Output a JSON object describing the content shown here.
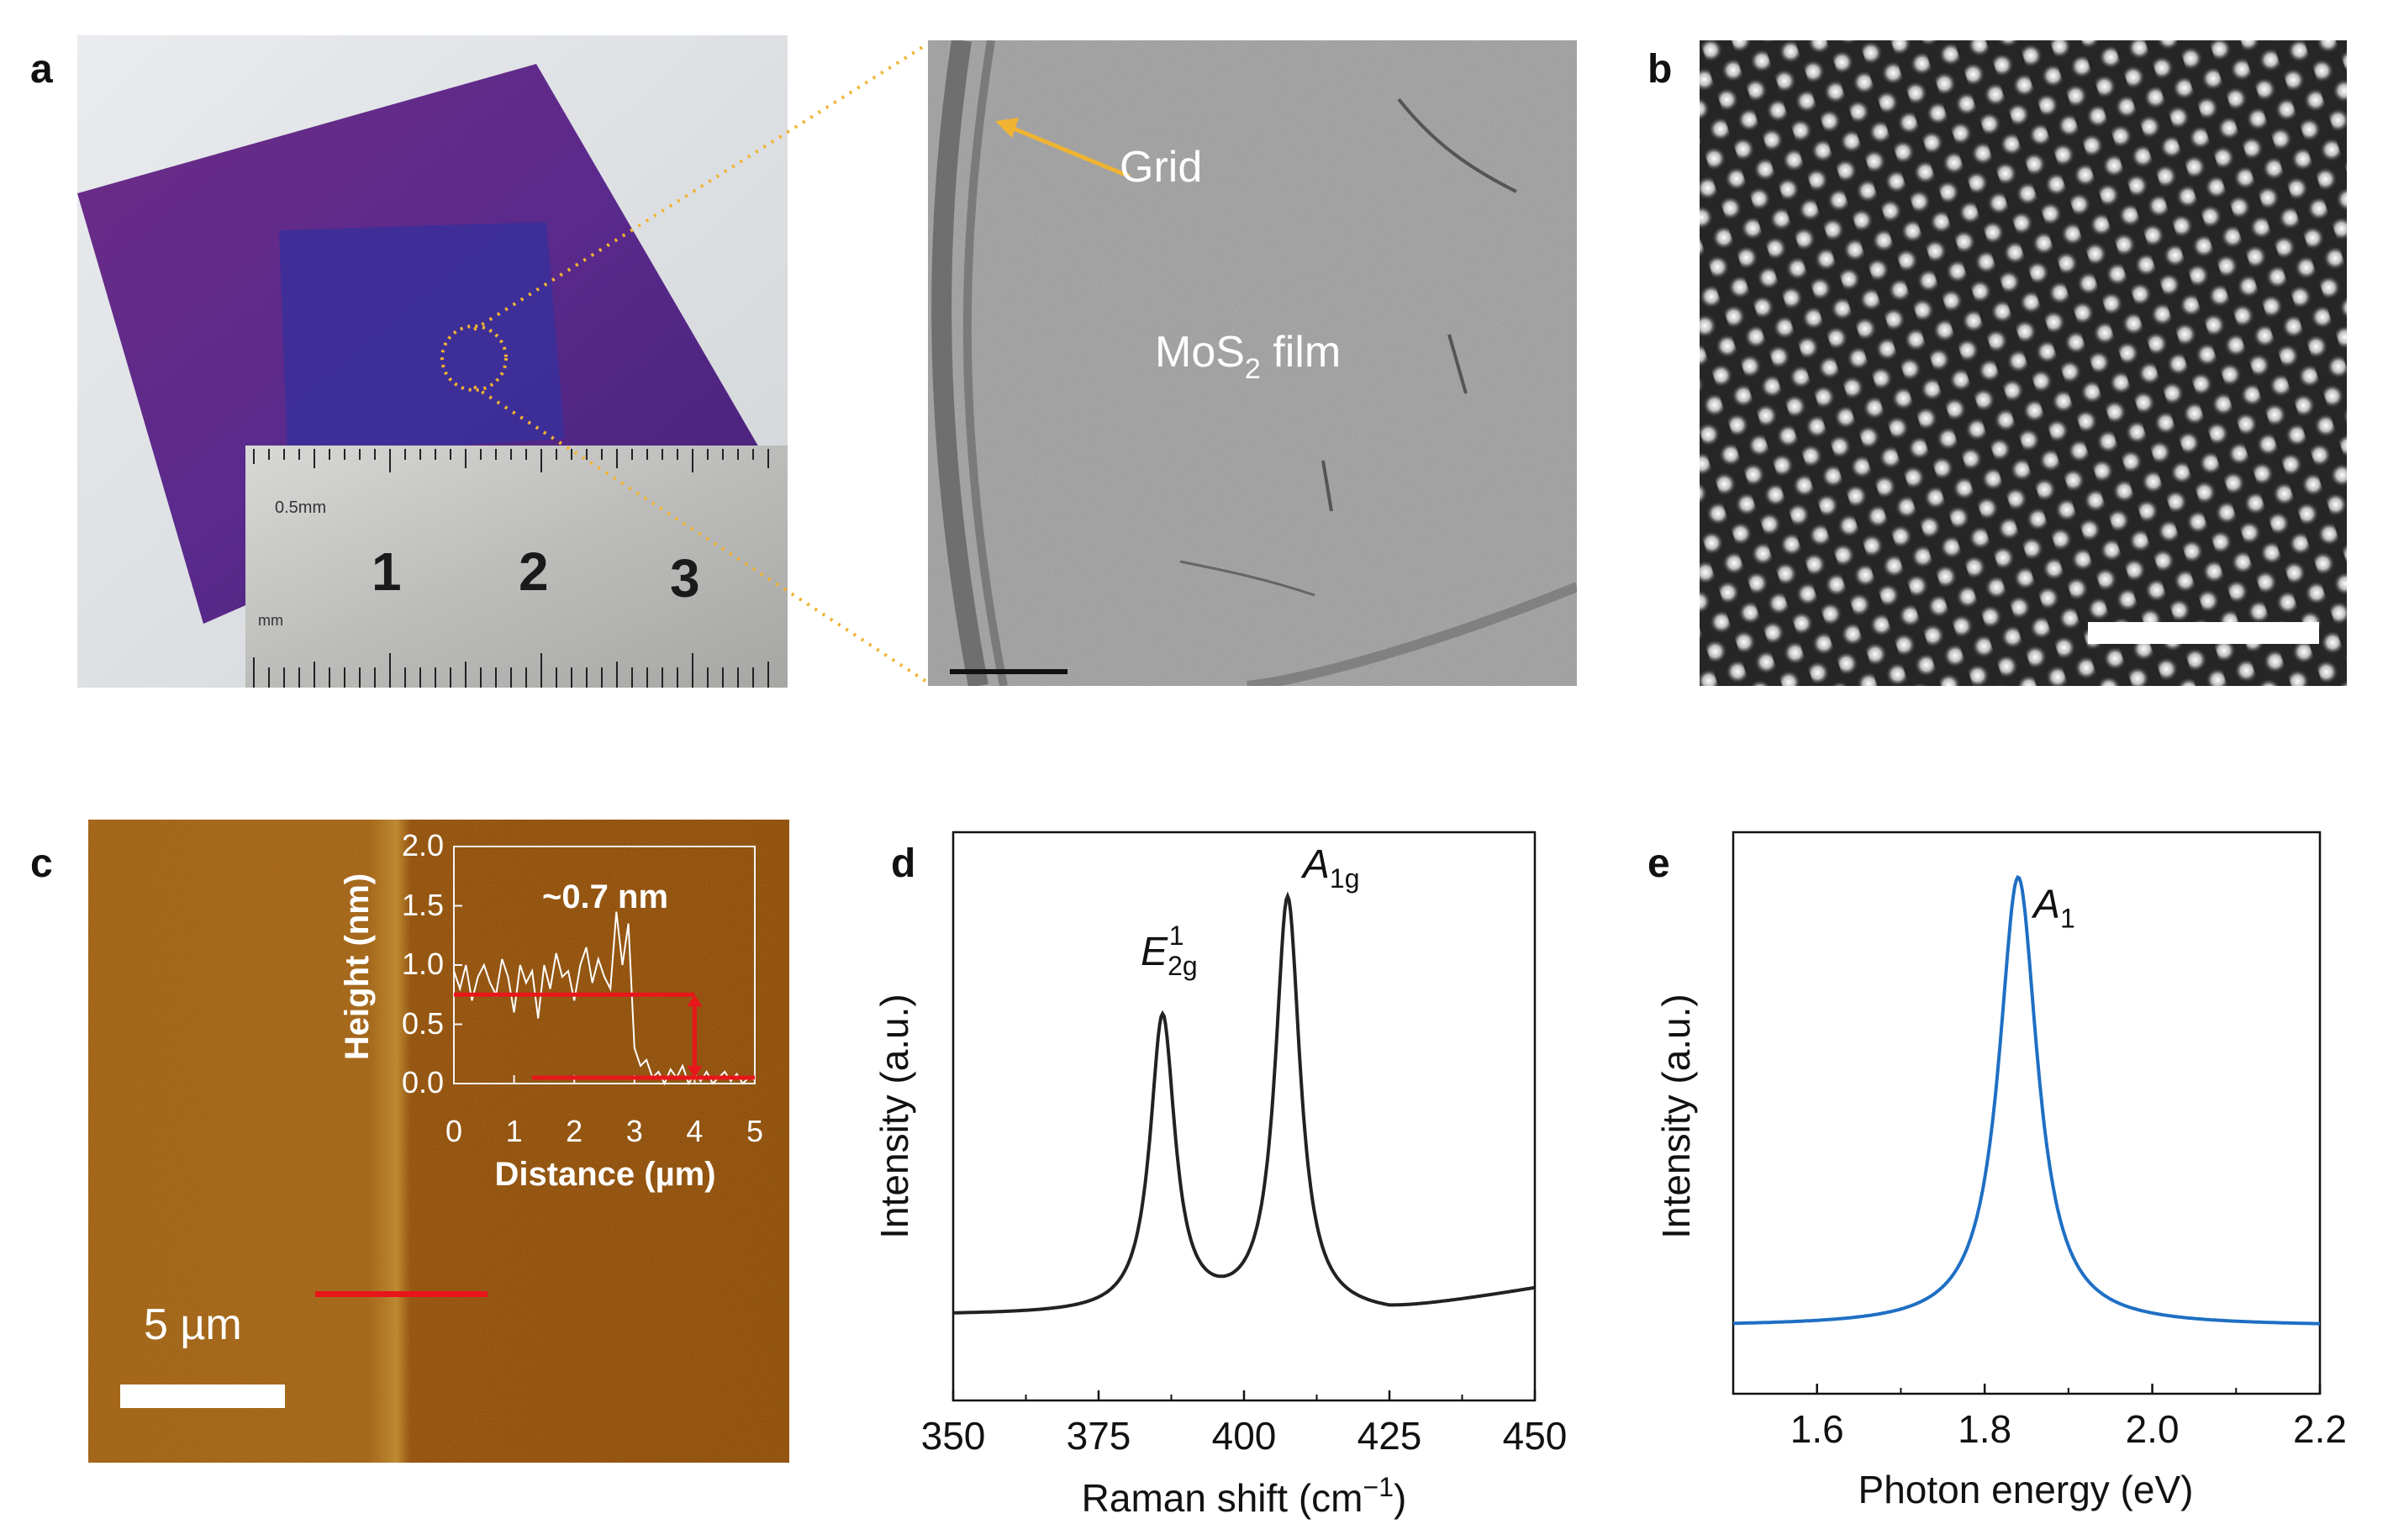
{
  "panels": {
    "a": {
      "letter": "a",
      "ruler": {
        "label_small": "0.5mm",
        "label_mm": "mm",
        "numbers": [
          "1",
          "2",
          "3"
        ]
      },
      "tem": {
        "grid_label": "Grid",
        "film_label_main": "MoS",
        "film_label_sub": "2",
        "film_label_tail": " film"
      }
    },
    "b": {
      "letter": "b"
    },
    "c": {
      "letter": "c",
      "scale_label": "5 µm",
      "inset": {
        "annotation": "~0.7 nm",
        "xlabel": "Distance (µm)",
        "ylabel": "Height (nm)",
        "xticks": [
          "0",
          "1",
          "2",
          "3",
          "4",
          "5"
        ],
        "yticks": [
          "0.0",
          "0.5",
          "1.0",
          "1.5",
          "2.0"
        ]
      }
    },
    "d": {
      "letter": "d"
    },
    "e": {
      "letter": "e"
    }
  },
  "chart_data": [
    {
      "id": "afm-profile",
      "type": "line",
      "title": "",
      "xlabel": "Distance (µm)",
      "ylabel": "Height (nm)",
      "xlim": [
        0,
        5
      ],
      "ylim": [
        0,
        2
      ],
      "x": [
        0,
        0.1,
        0.2,
        0.3,
        0.4,
        0.5,
        0.6,
        0.7,
        0.8,
        0.9,
        1.0,
        1.1,
        1.2,
        1.3,
        1.4,
        1.5,
        1.6,
        1.7,
        1.8,
        1.9,
        2.0,
        2.1,
        2.2,
        2.3,
        2.4,
        2.5,
        2.6,
        2.7,
        2.8,
        2.9,
        3.0,
        3.1,
        3.2,
        3.3,
        3.4,
        3.5,
        3.6,
        3.7,
        3.8,
        3.9,
        4.0,
        4.1,
        4.2,
        4.3,
        4.4,
        4.5,
        4.6,
        4.7,
        4.8,
        4.9,
        5.0
      ],
      "y": [
        0.95,
        0.8,
        1.0,
        0.7,
        0.9,
        1.0,
        0.85,
        0.75,
        1.05,
        0.9,
        0.6,
        1.0,
        0.85,
        0.95,
        0.55,
        1.0,
        0.8,
        1.1,
        0.9,
        0.95,
        0.7,
        1.0,
        1.15,
        0.85,
        1.05,
        0.9,
        0.8,
        1.45,
        1.0,
        1.35,
        0.3,
        0.15,
        0.2,
        0.05,
        0.1,
        0.0,
        0.12,
        0.05,
        0.15,
        0.0,
        0.08,
        0.02,
        0.1,
        0.0,
        0.05,
        0.1,
        0.02,
        0.08,
        0.0,
        0.05,
        0.03
      ],
      "step_levels": [
        0.75,
        0.05
      ],
      "step_x": 4.0,
      "annotation": "~0.7 nm"
    },
    {
      "id": "raman",
      "type": "line",
      "title": "",
      "xlabel": "Raman shift (cm",
      "xlabel_sup": "−1",
      "xlabel_tail": ")",
      "ylabel": "Intensity (a.u.)",
      "xlim": [
        350,
        450
      ],
      "ylim": [
        0,
        1
      ],
      "xticks": [
        "350",
        "375",
        "400",
        "425",
        "450"
      ],
      "peaks": [
        {
          "label_main": "E",
          "label_sub": "2g",
          "label_sup": "1",
          "center": 386,
          "height": 0.52,
          "width": 2.6
        },
        {
          "label_main": "A",
          "label_sub": "1g",
          "label_sup": "",
          "center": 407.5,
          "height": 0.73,
          "width": 2.6
        }
      ],
      "baseline": 0.15,
      "color": "#222222"
    },
    {
      "id": "pl",
      "type": "line",
      "title": "",
      "xlabel": "Photon energy (eV)",
      "ylabel": "Intensity (a.u.)",
      "xlim": [
        1.5,
        2.2
      ],
      "ylim": [
        0,
        1
      ],
      "xticks": [
        "1.6",
        "1.8",
        "2.0",
        "2.2"
      ],
      "peaks": [
        {
          "label_main": "A",
          "label_sub": "1",
          "label_sup": "",
          "center": 1.84,
          "height": 0.8,
          "width": 0.028
        }
      ],
      "baseline": 0.12,
      "color": "#1f6fc4"
    }
  ]
}
